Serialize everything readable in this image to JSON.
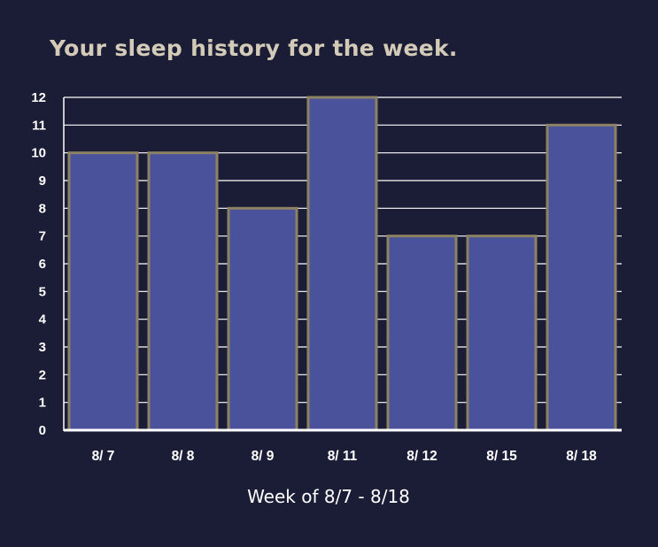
{
  "chart_data": {
    "type": "bar",
    "title": "Your sleep history for the week.",
    "xlabel": "Week of 8/7 - 8/18",
    "ylabel": "",
    "categories": [
      "8/ 7",
      "8/ 8",
      "8/ 9",
      "8/ 11",
      "8/ 12",
      "8/ 15",
      "8/ 18"
    ],
    "values": [
      10,
      10,
      8,
      12,
      7,
      7,
      11
    ],
    "ylim": [
      0,
      12
    ],
    "yticks": [
      0,
      1,
      2,
      3,
      4,
      5,
      6,
      7,
      8,
      9,
      10,
      11,
      12
    ],
    "grid": true,
    "legend": "none",
    "colors": {
      "background": "#1b1d37",
      "bar_fill": "#4a529b",
      "bar_stroke": "#8c8263",
      "grid": "#ffffff",
      "title": "#d3cab7",
      "text": "#ffffff"
    }
  }
}
